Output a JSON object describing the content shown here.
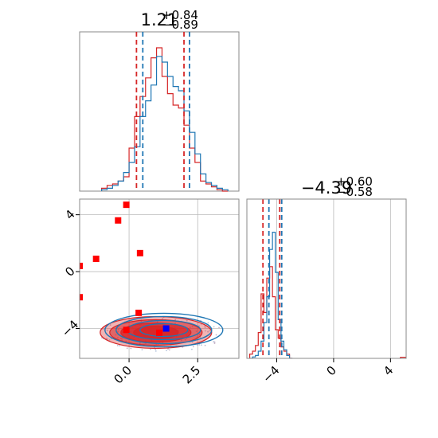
{
  "colors": {
    "red": "#d62728",
    "blue": "#1f77b4",
    "axes": "#888888",
    "grid": "#bbbbbb",
    "marker_red": "#ff0000",
    "marker_blue": "#0000ff"
  },
  "chart_data": [
    {
      "type": "histogram",
      "title": {
        "value": "1.21",
        "plus": "+0.84",
        "minus": "−0.89"
      },
      "x_ticks": [],
      "xlim": [
        -1.8,
        4.0
      ],
      "grid": false,
      "quantiles": {
        "red": [
          0.27,
          2.0
        ],
        "blue": [
          0.5,
          2.2
        ]
      },
      "series": [
        {
          "color": "red",
          "x": [
            -0.9,
            -0.7,
            -0.5,
            -0.3,
            -0.1,
            0.1,
            0.3,
            0.5,
            0.7,
            0.9,
            1.1,
            1.3,
            1.5,
            1.7,
            1.9,
            2.1,
            2.3,
            2.5,
            2.7,
            2.9,
            3.1,
            3.3,
            3.5
          ],
          "values": [
            0.02,
            0.04,
            0.05,
            0.07,
            0.1,
            0.3,
            0.52,
            0.66,
            0.79,
            0.93,
            1.0,
            0.8,
            0.68,
            0.6,
            0.58,
            0.46,
            0.3,
            0.2,
            0.07,
            0.05,
            0.03,
            0.01,
            0.0
          ]
        },
        {
          "color": "blue",
          "x": [
            -0.9,
            -0.7,
            -0.5,
            -0.3,
            -0.1,
            0.1,
            0.3,
            0.5,
            0.7,
            0.9,
            1.1,
            1.3,
            1.5,
            1.7,
            1.9,
            2.1,
            2.3,
            2.5,
            2.7,
            2.9,
            3.1,
            3.3,
            3.5
          ],
          "values": [
            0.01,
            0.02,
            0.04,
            0.07,
            0.13,
            0.2,
            0.31,
            0.52,
            0.63,
            0.74,
            0.94,
            0.9,
            0.8,
            0.73,
            0.7,
            0.56,
            0.41,
            0.26,
            0.12,
            0.06,
            0.04,
            0.02,
            0.01
          ]
        }
      ]
    },
    {
      "type": "contour-scatter",
      "x_ticks": [
        "0.0",
        "2.5"
      ],
      "y_ticks": [
        "4",
        "0",
        "−4"
      ],
      "x_tick_values": [
        0.0,
        2.5
      ],
      "y_tick_values": [
        4,
        0,
        -4
      ],
      "xlim": [
        -1.8,
        4.0
      ],
      "ylim": [
        -6.1,
        5.1
      ],
      "grid": true,
      "contour_center": {
        "x": 1.21,
        "y": -4.39
      },
      "markers_red": [
        {
          "x": -0.1,
          "y": 4.7
        },
        {
          "x": -0.4,
          "y": 3.6
        },
        {
          "x": 0.4,
          "y": 1.3
        },
        {
          "x": -1.2,
          "y": 0.9
        },
        {
          "x": -1.8,
          "y": 0.4
        },
        {
          "x": -1.8,
          "y": -1.8
        },
        {
          "x": 0.35,
          "y": -2.9
        },
        {
          "x": -0.1,
          "y": -4.1
        },
        {
          "x": 1.1,
          "y": -4.3
        }
      ],
      "markers_blue": [
        {
          "x": 1.35,
          "y": -4.0
        }
      ]
    },
    {
      "type": "histogram",
      "title": {
        "value": "−4.39",
        "plus": "+0.60",
        "minus": "−0.58"
      },
      "x_ticks": [
        "−4",
        "0",
        "4"
      ],
      "x_tick_values": [
        -4,
        0,
        4
      ],
      "xlim": [
        -6.1,
        5.1
      ],
      "grid": true,
      "quantiles": {
        "red": [
          -4.97,
          -3.79
        ],
        "blue": [
          -4.55,
          -3.65
        ]
      },
      "series": [
        {
          "color": "red",
          "x": [
            -5.8,
            -5.6,
            -5.4,
            -5.2,
            -5.0,
            -4.8,
            -4.6,
            -4.4,
            -4.2,
            -4.0,
            -3.8,
            -3.6,
            -3.4,
            -3.2,
            -3.0
          ],
          "values": [
            0.03,
            0.05,
            0.09,
            0.18,
            0.45,
            0.32,
            0.56,
            0.64,
            0.43,
            0.2,
            0.14,
            0.08,
            0.05,
            0.03,
            0.0
          ]
        },
        {
          "color": "blue",
          "x": [
            -5.8,
            -5.6,
            -5.4,
            -5.2,
            -5.0,
            -4.8,
            -4.6,
            -4.4,
            -4.2,
            -4.0,
            -3.8,
            -3.6,
            -3.4,
            -3.2,
            -3.0
          ],
          "values": [
            0.0,
            0.01,
            0.02,
            0.05,
            0.12,
            0.25,
            0.43,
            0.76,
            0.88,
            0.6,
            0.27,
            0.12,
            0.06,
            0.02,
            0.0
          ]
        },
        {
          "color": "red",
          "x": [
            4.8,
            5.0
          ],
          "values": [
            0.008,
            0.008
          ]
        }
      ]
    }
  ]
}
